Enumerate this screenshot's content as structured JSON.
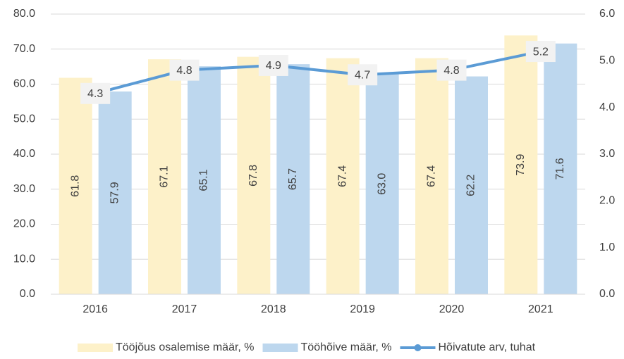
{
  "chart_data": {
    "type": "bar_line",
    "categories": [
      "2016",
      "2017",
      "2018",
      "2019",
      "2020",
      "2021"
    ],
    "series": [
      {
        "name": "Tööjõus osalemise määr, %",
        "color": "#fdf1c9",
        "values": [
          61.8,
          67.1,
          67.8,
          67.4,
          67.4,
          73.9
        ]
      },
      {
        "name": "Tööhõive määr, %",
        "color": "#bdd7ee",
        "values": [
          57.9,
          65.1,
          65.7,
          63.0,
          62.2,
          71.6
        ],
        "value_labels": [
          "57.9",
          "65.1",
          "65.7",
          "63.0",
          "62.2",
          "71.6"
        ]
      },
      {
        "name": "Hõivatute arv, tuhat",
        "color": "#5b9bd5",
        "axis": "y2",
        "values": [
          4.3,
          4.8,
          4.9,
          4.7,
          4.8,
          5.2
        ]
      }
    ],
    "ylim": [
      0,
      80
    ],
    "yticks": [
      {
        "value": 0,
        "label": "0.0"
      },
      {
        "value": 10,
        "label": "10.0"
      },
      {
        "value": 20,
        "label": "20.0"
      },
      {
        "value": 30,
        "label": "30.0"
      },
      {
        "value": 40,
        "label": "40.0"
      },
      {
        "value": 50,
        "label": "50.0"
      },
      {
        "value": 60,
        "label": "60.0"
      },
      {
        "value": 70,
        "label": "70.0"
      },
      {
        "value": 80,
        "label": "80.0"
      }
    ],
    "y2lim": [
      0,
      6
    ],
    "y2ticks": [
      {
        "value": 0,
        "label": "0.0"
      },
      {
        "value": 1,
        "label": "1.0"
      },
      {
        "value": 2,
        "label": "2.0"
      },
      {
        "value": 3,
        "label": "3.0"
      },
      {
        "value": 4,
        "label": "4.0"
      },
      {
        "value": 5,
        "label": "5.0"
      },
      {
        "value": 6,
        "label": "6.0"
      }
    ],
    "grid": true,
    "legend": "bottom"
  }
}
